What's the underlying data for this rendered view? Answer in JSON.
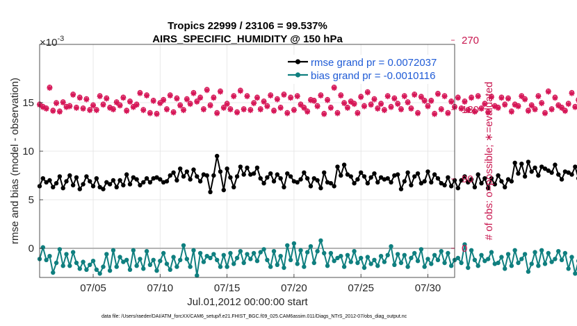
{
  "chart_data": {
    "type": "line",
    "title_line1": "Tropics 22999 / 23106 = 99.537%",
    "title_line2": "AIRS_SPECIFIC_HUMIDITY @ 150 hPa",
    "xlabel": "Jul.01,2012 00:00:00 start",
    "ylabel": "rmse and bias (model - observation)",
    "ylabel_right": "# of obs: o=possible; ∗=evaluated",
    "exponent_label": "×10",
    "exponent_power": "-3",
    "x_ticks": [
      "07/05",
      "07/10",
      "07/15",
      "07/20",
      "07/25",
      "07/30"
    ],
    "x_tick_values": [
      5,
      10,
      15,
      20,
      25,
      30
    ],
    "xlim": [
      1,
      32
    ],
    "y_ticks": [
      "0",
      "5",
      "10",
      "15"
    ],
    "y_tick_values": [
      0,
      5,
      10,
      15
    ],
    "ylim": [
      -3,
      21
    ],
    "y_right_ticks": [
      "0",
      "90",
      "180",
      "270"
    ],
    "y_right_tick_values": [
      0,
      90,
      180,
      270
    ],
    "ylim_right": [
      -37.8,
      264.6
    ],
    "zero_line": true,
    "grid": true,
    "legend_location": "top-right",
    "legend": [
      "rmse grand pr = 0.0072037",
      "bias grand pr = -0.0010116"
    ],
    "colors": {
      "rmse": "#000000",
      "bias": "#0f7f7f",
      "obs": "#d61657",
      "zero_line": "#b4b4b4",
      "legend_text": "#1f5bd6"
    },
    "t_start": 1,
    "t_step": 0.25,
    "series": [
      {
        "name": "rmse",
        "values": [
          6.4,
          7.2,
          6.8,
          7.0,
          6.3,
          6.7,
          7.4,
          6.2,
          6.9,
          7.5,
          6.5,
          7.3,
          6.1,
          6.6,
          7.4,
          6.9,
          6.4,
          7.2,
          6.3,
          6.1,
          6.8,
          6.6,
          7.0,
          6.3,
          7.0,
          6.5,
          7.6,
          6.6,
          7.3,
          7.1,
          6.5,
          6.8,
          7.2,
          6.8,
          7.2,
          7.3,
          7.1,
          6.8,
          6.9,
          7.5,
          7.8,
          7.0,
          8.2,
          7.4,
          7.9,
          7.1,
          8.1,
          7.4,
          6.9,
          7.6,
          7.5,
          5.8,
          7.5,
          9.5,
          7.9,
          6.0,
          8.2,
          7.3,
          6.3,
          7.4,
          8.4,
          7.6,
          8.3,
          7.6,
          7.7,
          8.3,
          7.2,
          6.7,
          7.3,
          7.7,
          6.9,
          7.6,
          7.2,
          6.3,
          7.7,
          7.4,
          6.9,
          6.8,
          7.1,
          7.8,
          7.2,
          6.4,
          7.2,
          7.0,
          6.2,
          7.8,
          6.8,
          6.7,
          6.4,
          8.4,
          7.5,
          8.6,
          7.6,
          7.4,
          6.7,
          7.1,
          7.8,
          7.4,
          6.7,
          7.3,
          7.7,
          6.8,
          7.3,
          7.1,
          7.2,
          6.8,
          7.5,
          7.6,
          6.1,
          6.9,
          7.8,
          6.5,
          7.4,
          7.7,
          6.7,
          6.9,
          7.9,
          6.8,
          7.6,
          7.2,
          6.7,
          6.5,
          7.3,
          6.4,
          7.0,
          6.2,
          7.0,
          7.4,
          6.8,
          7.1,
          6.3,
          7.6,
          6.7,
          7.2,
          6.2,
          7.2,
          6.6,
          7.5,
          6.9,
          6.3,
          7.1,
          6.9,
          8.8,
          7.7,
          8.7,
          7.4,
          8.9,
          7.9,
          8.3,
          7.5,
          8.4,
          8.2,
          8.0,
          7.8,
          8.6,
          7.6,
          7.1,
          7.9,
          7.8,
          7.6,
          8.4,
          7.2,
          7.8,
          8.1,
          7.5,
          6.7,
          7.6,
          7.0,
          6.3,
          8.6,
          7.2,
          6.5,
          9.4,
          6.3,
          8.0,
          7.7
        ]
      },
      {
        "name": "bias",
        "values": [
          -1.1,
          0.1,
          -1.2,
          -0.8,
          -2.5,
          -1.5,
          -0.1,
          -1.8,
          -0.6,
          -1.8,
          -0.4,
          -1.5,
          -2.1,
          -1.4,
          -2.2,
          -1.7,
          -1.3,
          -2.2,
          -2.6,
          -1.9,
          -0.6,
          -2.3,
          -0.2,
          -1.9,
          -0.9,
          -1.4,
          -1.2,
          -2.2,
          -0.2,
          -1.8,
          -1.1,
          -2.1,
          -0.3,
          -1.7,
          -1.2,
          -2.3,
          -1.3,
          -0.5,
          -1.6,
          -2.2,
          -0.9,
          -1.9,
          -1.2,
          0.3,
          -1.1,
          -1.9,
          -0.2,
          -2.8,
          -0.5,
          -1.4,
          -0.8,
          -1.0,
          -0.6,
          -1.2,
          -1.9,
          -0.7,
          -1.9,
          -0.5,
          -1.6,
          -1.0,
          -0.3,
          -1.5,
          -0.6,
          -1.1,
          -0.5,
          -1.3,
          -0.4,
          -0.1,
          -1.2,
          -1.9,
          -0.3,
          -1.7,
          -0.8,
          -2.0,
          0.3,
          -1.2,
          0.5,
          -1.6,
          -0.2,
          -1.9,
          -0.4,
          0.2,
          -1.5,
          -0.3,
          0.8,
          -0.5,
          -1.8,
          -0.5,
          -1.3,
          -1.0,
          -0.8,
          -1.9,
          -0.7,
          -1.4,
          -0.3,
          -1.5,
          -1.0,
          -2.0,
          -0.9,
          -1.6,
          -1.2,
          -1.8,
          -0.8,
          -1.4,
          -0.7,
          0.2,
          -1.7,
          -0.6,
          -1.5,
          -0.7,
          -1.9,
          -1.0,
          -0.5,
          -1.3,
          -0.1,
          -1.9,
          -1.1,
          -1.6,
          -0.7,
          -1.2,
          -0.3,
          -1.5,
          -0.5,
          -1.8,
          -1.2,
          -1.0,
          -1.5,
          0.4,
          -2.0,
          -0.2,
          -1.2,
          -1.8,
          -0.7,
          -1.3,
          -1.1,
          -0.4,
          -1.6,
          -1.5,
          -0.9,
          -2.1,
          -0.6,
          -1.8,
          -0.2,
          -1.5,
          -1.1,
          -0.6,
          -2.4,
          -1.6,
          -0.4,
          -1.8,
          -0.2,
          -1.6,
          -0.5,
          -1.4,
          -1.1,
          -0.3,
          -1.2,
          -0.5,
          -2.1,
          -0.9,
          -2.6,
          -1.3,
          -0.5,
          -1.8,
          -0.5,
          -1.2,
          -1.4,
          -1.6,
          -0.5,
          -1.2,
          -1.5,
          -0.7,
          -2.1,
          0.7,
          -0.5,
          -0.3,
          -0.1
        ]
      },
      {
        "name": "obs_possible",
        "values": [
          187,
          184,
          182,
          209,
          179,
          189,
          178,
          190,
          184,
          185,
          200,
          183,
          196,
          182,
          194,
          180,
          186,
          180,
          198,
          187,
          195,
          183,
          181,
          190,
          186,
          196,
          179,
          191,
          184,
          187,
          202,
          180,
          199,
          176,
          192,
          175,
          189,
          193,
          181,
          199,
          177,
          195,
          186,
          180,
          194,
          188,
          202,
          191,
          196,
          181,
          206,
          186,
          196,
          176,
          204,
          183,
          188,
          181,
          198,
          177,
          205,
          181,
          198,
          180,
          189,
          196,
          181,
          191,
          185,
          199,
          179,
          194,
          183,
          200,
          176,
          196,
          180,
          198,
          187,
          183,
          178,
          193,
          192,
          185,
          199,
          175,
          193,
          183,
          209,
          176,
          199,
          189,
          183,
          191,
          188,
          176,
          197,
          185,
          203,
          187,
          194,
          182,
          188,
          180,
          198,
          184,
          195,
          188,
          181,
          198,
          190,
          182,
          200,
          176,
          197,
          192,
          185,
          192,
          175,
          201,
          181,
          198,
          176,
          191,
          184,
          196,
          182,
          191,
          180,
          196,
          178,
          198,
          182,
          188,
          177,
          197,
          185,
          183,
          196,
          187,
          195,
          178,
          187,
          185,
          198,
          194,
          179,
          186,
          181,
          198,
          189,
          176,
          204,
          181,
          196,
          186,
          183,
          179,
          188,
          202,
          184,
          193,
          183,
          180,
          205,
          188,
          194,
          178,
          201,
          178,
          195,
          187,
          190,
          184,
          187,
          188,
          191,
          192
        ]
      },
      {
        "name": "obs_evaluated",
        "values": [
          186,
          183,
          181,
          208,
          178,
          188,
          177,
          189,
          183,
          184,
          199,
          182,
          195,
          181,
          193,
          179,
          185,
          179,
          197,
          186,
          194,
          182,
          180,
          189,
          185,
          195,
          178,
          190,
          183,
          186,
          201,
          179,
          198,
          175,
          191,
          174,
          188,
          192,
          180,
          198,
          176,
          194,
          185,
          179,
          193,
          187,
          201,
          190,
          195,
          180,
          205,
          185,
          195,
          175,
          203,
          182,
          187,
          180,
          197,
          176,
          204,
          180,
          197,
          179,
          188,
          195,
          180,
          190,
          184,
          198,
          178,
          193,
          182,
          199,
          175,
          195,
          179,
          197,
          186,
          182,
          177,
          192,
          191,
          184,
          198,
          174,
          192,
          182,
          208,
          175,
          198,
          188,
          182,
          190,
          187,
          175,
          196,
          184,
          202,
          186,
          193,
          181,
          187,
          179,
          197,
          183,
          194,
          187,
          180,
          197,
          189,
          181,
          199,
          175,
          196,
          191,
          184,
          191,
          174,
          200,
          180,
          197,
          175,
          190,
          183,
          195,
          181,
          190,
          179,
          195,
          177,
          197,
          181,
          187,
          176,
          196,
          184,
          182,
          195,
          186,
          194,
          177,
          186,
          184,
          197,
          193,
          178,
          185,
          180,
          197,
          188,
          175,
          203,
          180,
          195,
          185,
          182,
          178,
          187,
          201,
          183,
          192,
          182,
          179,
          204,
          187,
          193,
          177,
          200,
          177,
          194,
          186,
          189,
          183,
          186,
          187,
          190,
          191
        ]
      }
    ]
  },
  "footer": "data file: /Users/raeder/DAI/ATM_forcXX/CAM6_setup/f.e21.FHIST_BGC.f09_025.CAM6assim.011/Diags_NTrS_2012-07/obs_diag_output.nc"
}
